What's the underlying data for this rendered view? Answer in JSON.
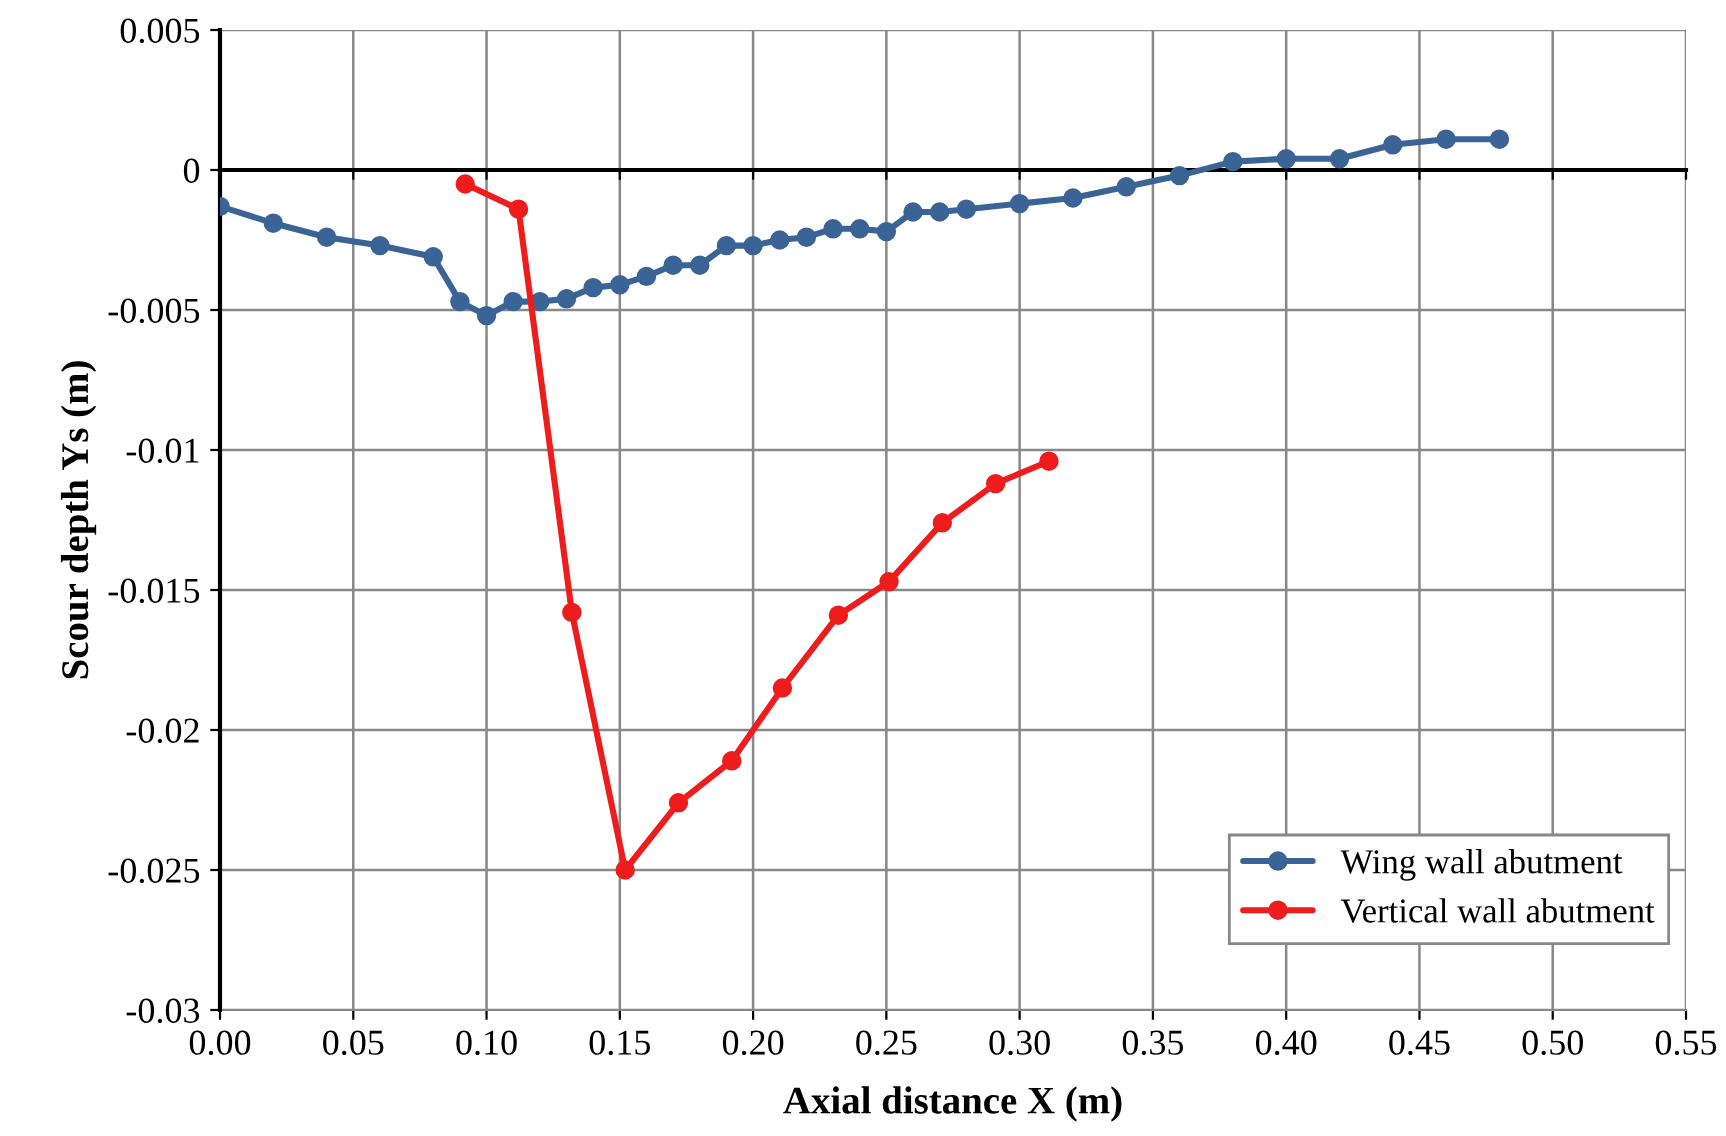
{
  "chart_data": {
    "type": "line",
    "xlabel": "Axial distance X (m)",
    "ylabel": "Scour depth Ys (m)",
    "xlim": [
      0,
      0.55
    ],
    "xticks": [
      {
        "value": 0,
        "label": "0.00"
      },
      {
        "value": 0.05,
        "label": "0.05"
      },
      {
        "value": 0.1,
        "label": "0.10"
      },
      {
        "value": 0.15,
        "label": "0.15"
      },
      {
        "value": 0.2,
        "label": "0.20"
      },
      {
        "value": 0.25,
        "label": "0.25"
      },
      {
        "value": 0.3,
        "label": "0.30"
      },
      {
        "value": 0.35,
        "label": "0.35"
      },
      {
        "value": 0.4,
        "label": "0.40"
      },
      {
        "value": 0.45,
        "label": "0.45"
      },
      {
        "value": 0.5,
        "label": "0.50"
      },
      {
        "value": 0.55,
        "label": "0.55"
      }
    ],
    "ylim": [
      -0.03,
      0.005
    ],
    "yticks": [
      0.005,
      0,
      -0.005,
      -0.01,
      -0.015,
      -0.02,
      -0.025,
      -0.03
    ],
    "grid": true,
    "legend": "bottom right",
    "marker": "circle",
    "line_style": "solid",
    "series": [
      {
        "name": "Wing wall abutment",
        "color": "#3a6496",
        "x": [
          0,
          0.02,
          0.04,
          0.06,
          0.08,
          0.09,
          0.1,
          0.11,
          0.12,
          0.13,
          0.14,
          0.15,
          0.16,
          0.17,
          0.18,
          0.19,
          0.2,
          0.21,
          0.22,
          0.23,
          0.24,
          0.25,
          0.26,
          0.27,
          0.28,
          0.3,
          0.32,
          0.34,
          0.36,
          0.38,
          0.4,
          0.42,
          0.44,
          0.46,
          0.48
        ],
        "values": [
          -0.0013,
          -0.0019,
          -0.0024,
          -0.0027,
          -0.0031,
          -0.0047,
          -0.0052,
          -0.0047,
          -0.0047,
          -0.0046,
          -0.0042,
          -0.0041,
          -0.0038,
          -0.0034,
          -0.0034,
          -0.0027,
          -0.0027,
          -0.0025,
          -0.0024,
          -0.0021,
          -0.0021,
          -0.0022,
          -0.0015,
          -0.0015,
          -0.0014,
          -0.0012,
          -0.001,
          -0.0006,
          -0.0002,
          0.0003,
          0.0004,
          0.0004,
          0.0009,
          0.0011,
          0.0011
        ]
      },
      {
        "name": "Vertical wall abutment",
        "color": "#ee1c1c",
        "x": [
          0.092,
          0.112,
          0.132,
          0.152,
          0.172,
          0.192,
          0.211,
          0.232,
          0.251,
          0.271,
          0.291,
          0.311
        ],
        "values": [
          -0.0005,
          -0.0014,
          -0.0158,
          -0.025,
          -0.0226,
          -0.0211,
          -0.0185,
          -0.0159,
          -0.0147,
          -0.0126,
          -0.0112,
          -0.0104
        ]
      }
    ]
  }
}
